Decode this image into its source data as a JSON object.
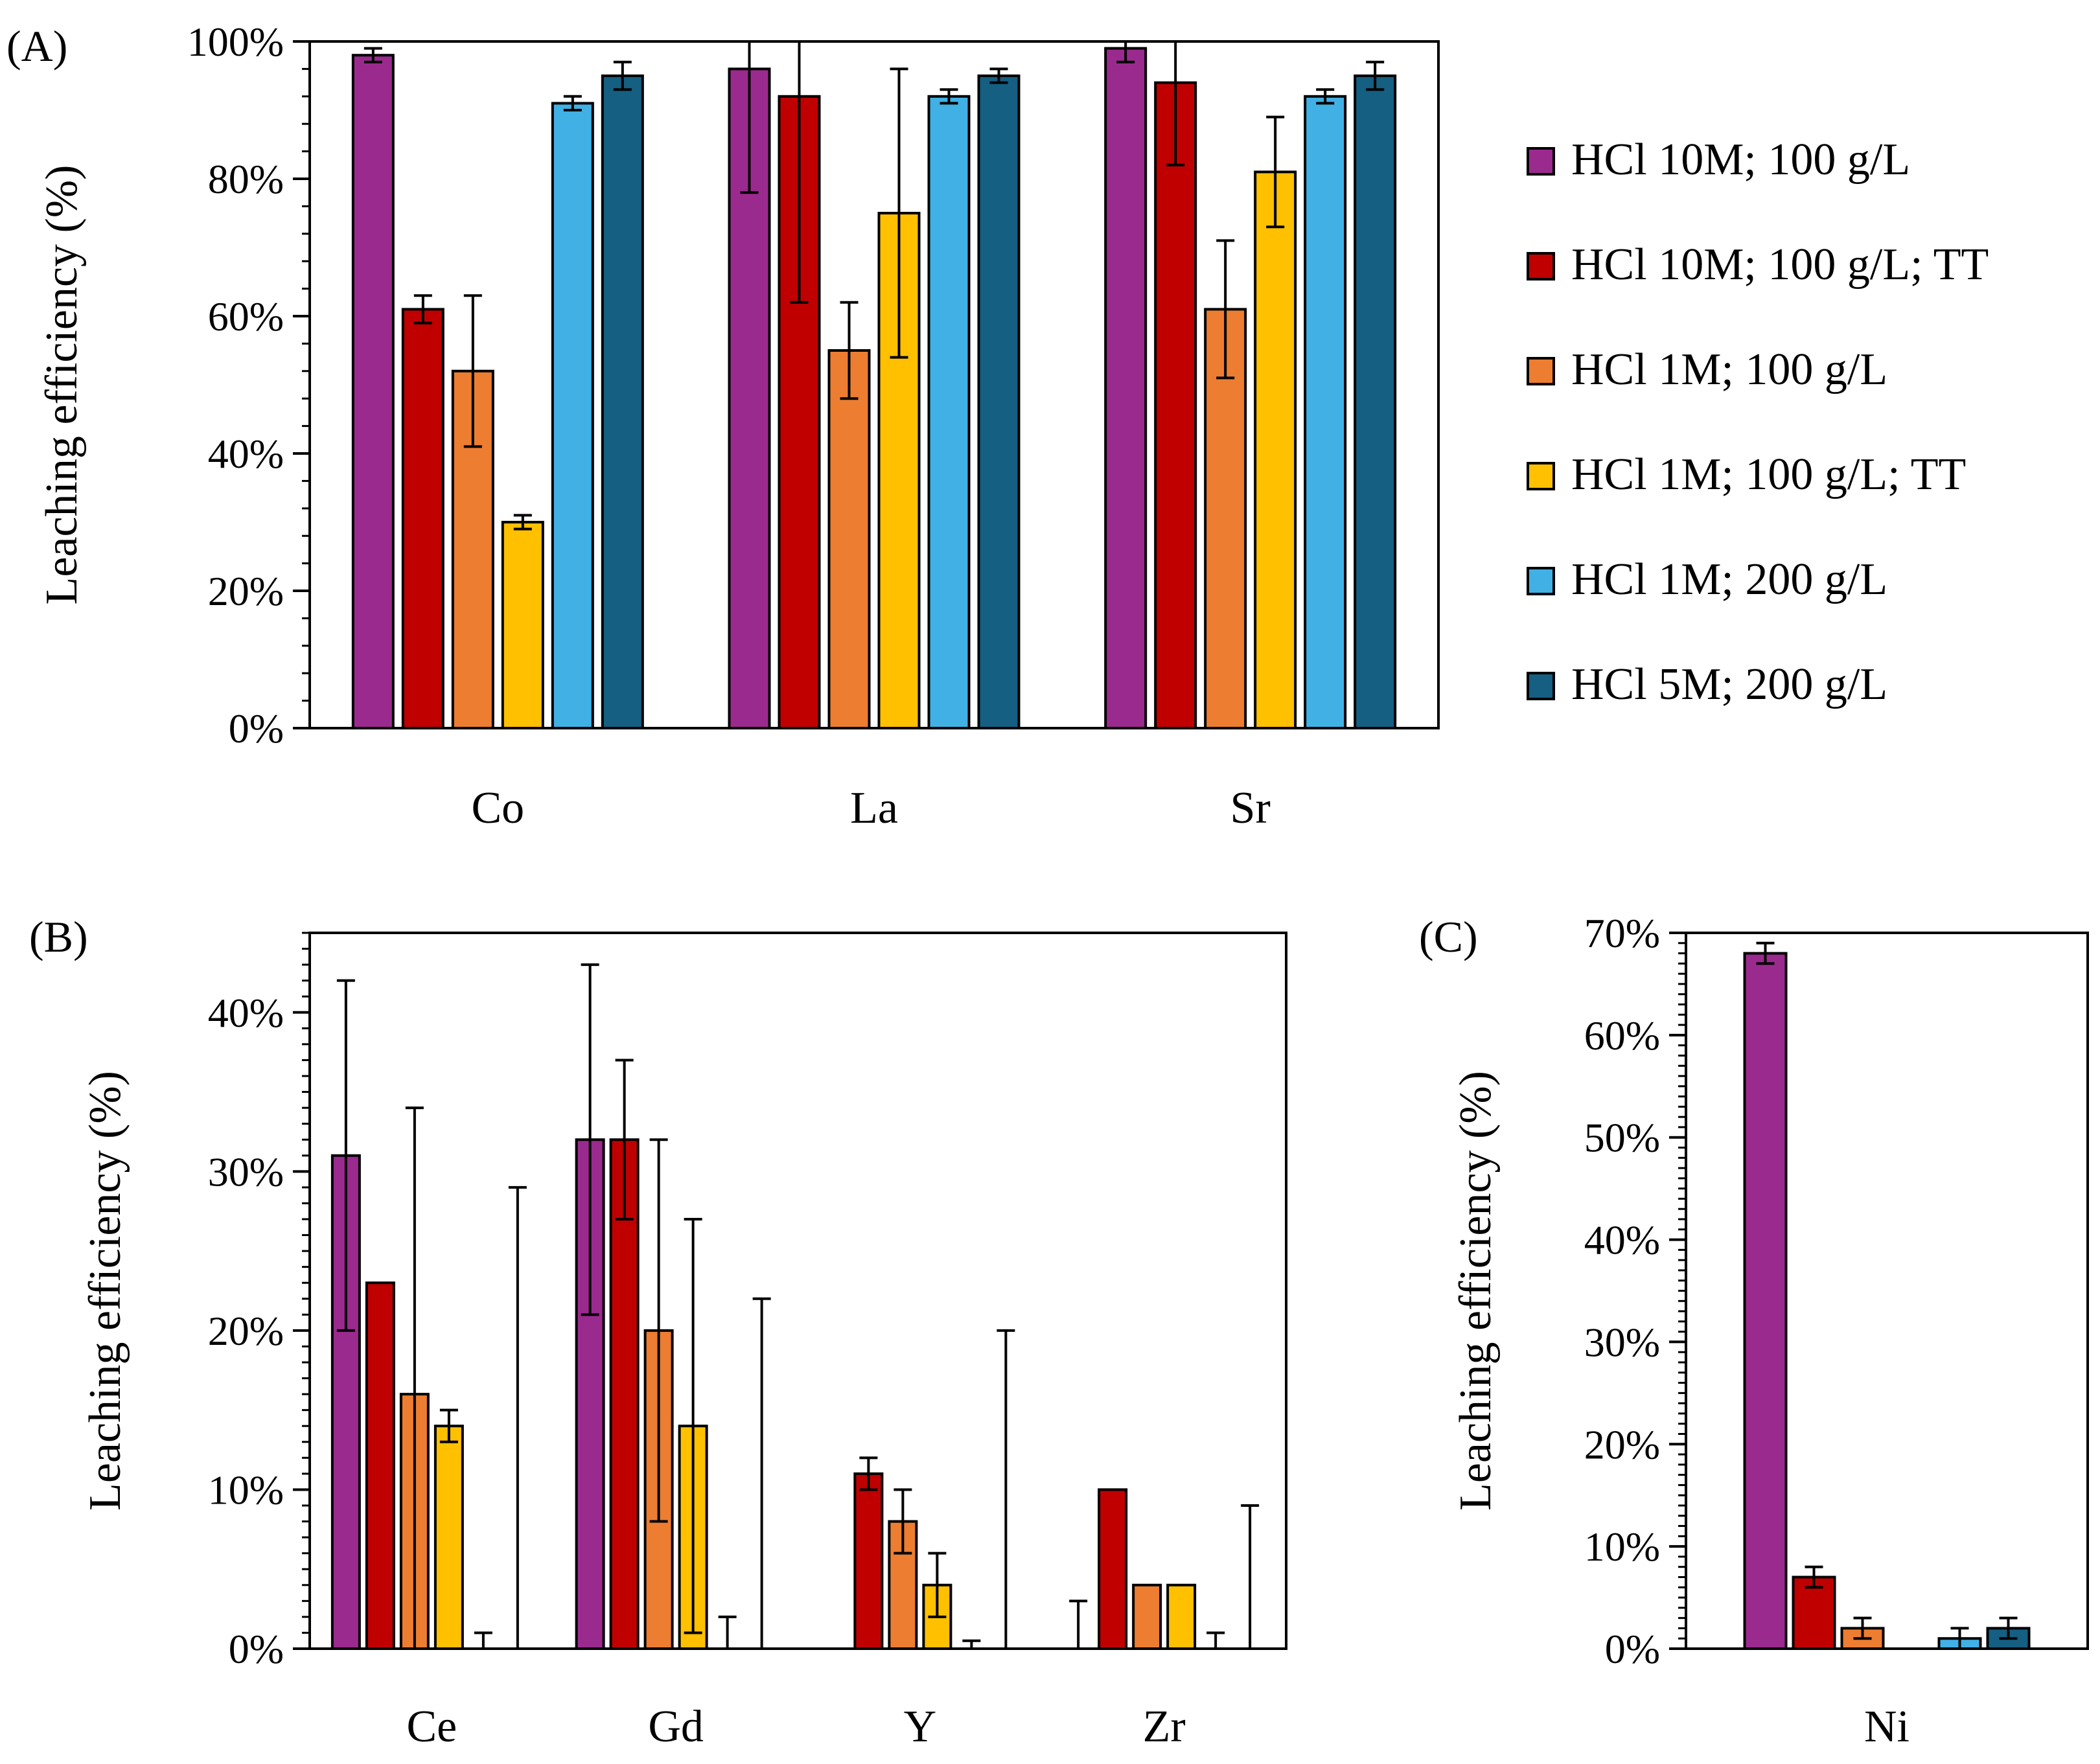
{
  "series_styles": [
    {
      "name": "HCl 10M; 100 g/L",
      "color": "#9B2A8E"
    },
    {
      "name": "HCl 10M; 100 g/L; TT",
      "color": "#C00000"
    },
    {
      "name": "HCl 1M; 100 g/L",
      "color": "#ED7D31"
    },
    {
      "name": "HCl 1M; 100 g/L; TT",
      "color": "#FFC000"
    },
    {
      "name": "HCl 1M; 200 g/L",
      "color": "#41B0E4"
    },
    {
      "name": "HCl 5M; 200 g/L",
      "color": "#145F82"
    }
  ],
  "chart_data": [
    {
      "id": "A",
      "panel_label": "(A)",
      "type": "bar",
      "ylabel": "Leaching efficiency (%)",
      "ylim": [
        0,
        100
      ],
      "yticks": [
        "0%",
        "20%",
        "40%",
        "60%",
        "80%",
        "100%"
      ],
      "categories": [
        "Co",
        "La",
        "Sr"
      ],
      "series": [
        {
          "name": "HCl 10M; 100 g/L",
          "values": [
            98,
            96,
            99
          ],
          "errors": [
            1,
            18,
            2
          ]
        },
        {
          "name": "HCl 10M; 100 g/L; TT",
          "values": [
            61,
            92,
            94
          ],
          "errors": [
            2,
            30,
            12
          ]
        },
        {
          "name": "HCl 1M; 100 g/L",
          "values": [
            52,
            55,
            61
          ],
          "errors": [
            11,
            7,
            10
          ]
        },
        {
          "name": "HCl 1M; 100 g/L; TT",
          "values": [
            30,
            75,
            81
          ],
          "errors": [
            1,
            21,
            8
          ]
        },
        {
          "name": "HCl 1M; 200 g/L",
          "values": [
            91,
            92,
            92
          ],
          "errors": [
            1,
            1,
            1
          ]
        },
        {
          "name": "HCl 5M; 200 g/L",
          "values": [
            95,
            95,
            95
          ],
          "errors": [
            2,
            1,
            2
          ]
        }
      ]
    },
    {
      "id": "B",
      "panel_label": "(B)",
      "type": "bar",
      "ylabel": "Leaching efficiency (%)",
      "ylim": [
        0,
        45
      ],
      "yticks": [
        "0%",
        "10%",
        "20%",
        "30%",
        "40%"
      ],
      "categories": [
        "Ce",
        "Gd",
        "Y",
        "Zr"
      ],
      "series": [
        {
          "name": "HCl 10M; 100 g/L",
          "values": [
            31,
            32,
            0,
            0
          ],
          "errors": [
            11,
            11,
            0,
            3
          ]
        },
        {
          "name": "HCl 10M; 100 g/L; TT",
          "values": [
            23,
            32,
            11,
            10
          ],
          "errors": [
            0,
            5,
            1,
            0
          ]
        },
        {
          "name": "HCl 1M; 100 g/L",
          "values": [
            16,
            20,
            8,
            4
          ],
          "errors": [
            18,
            12,
            2,
            0
          ]
        },
        {
          "name": "HCl 1M; 100 g/L; TT",
          "values": [
            14,
            14,
            4,
            4
          ],
          "errors": [
            1,
            13,
            2,
            0
          ]
        },
        {
          "name": "HCl 1M; 200 g/L",
          "values": [
            0,
            0,
            0,
            0
          ],
          "errors": [
            1,
            2,
            0.5,
            1
          ]
        },
        {
          "name": "HCl 5M; 200 g/L",
          "values": [
            0,
            0,
            0,
            0
          ],
          "errors": [
            29,
            22,
            20,
            9
          ]
        }
      ]
    },
    {
      "id": "C",
      "panel_label": "(C)",
      "type": "bar",
      "ylabel": "Leaching efficiency (%)",
      "ylim": [
        0,
        70
      ],
      "yticks": [
        "0%",
        "10%",
        "20%",
        "30%",
        "40%",
        "50%",
        "60%",
        "70%"
      ],
      "categories": [
        "Ni"
      ],
      "series": [
        {
          "name": "HCl 10M; 100 g/L",
          "values": [
            68
          ],
          "errors": [
            1
          ]
        },
        {
          "name": "HCl 10M; 100 g/L; TT",
          "values": [
            7
          ],
          "errors": [
            1
          ]
        },
        {
          "name": "HCl 1M; 100 g/L",
          "values": [
            2
          ],
          "errors": [
            1
          ]
        },
        {
          "name": "HCl 1M; 100 g/L; TT",
          "values": [
            0
          ],
          "errors": [
            0
          ]
        },
        {
          "name": "HCl 1M; 200 g/L",
          "values": [
            1
          ],
          "errors": [
            1
          ]
        },
        {
          "name": "HCl 5M; 200 g/L",
          "values": [
            2
          ],
          "errors": [
            1
          ]
        }
      ]
    }
  ]
}
